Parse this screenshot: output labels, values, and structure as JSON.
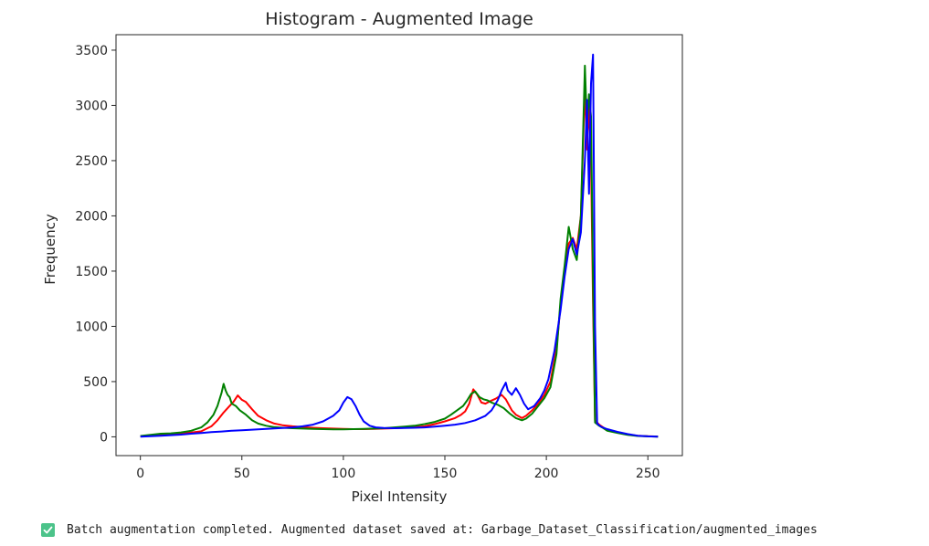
{
  "chart_data": {
    "type": "line",
    "title": "Histogram - Augmented Image",
    "xlabel": "Pixel Intensity",
    "ylabel": "Frequency",
    "xlim": [
      -12,
      267
    ],
    "ylim": [
      -170,
      3640
    ],
    "xticks": [
      0,
      50,
      100,
      150,
      200,
      250
    ],
    "yticks": [
      0,
      500,
      1000,
      1500,
      2000,
      2500,
      3000,
      3500
    ],
    "grid": false,
    "series": [
      {
        "color": "#ff0000",
        "points": [
          [
            0,
            5
          ],
          [
            5,
            12
          ],
          [
            10,
            22
          ],
          [
            15,
            28
          ],
          [
            20,
            32
          ],
          [
            25,
            38
          ],
          [
            30,
            50
          ],
          [
            35,
            95
          ],
          [
            38,
            150
          ],
          [
            41,
            220
          ],
          [
            44,
            280
          ],
          [
            46,
            320
          ],
          [
            48,
            375
          ],
          [
            50,
            335
          ],
          [
            52,
            315
          ],
          [
            55,
            250
          ],
          [
            58,
            190
          ],
          [
            62,
            150
          ],
          [
            66,
            120
          ],
          [
            70,
            105
          ],
          [
            75,
            95
          ],
          [
            80,
            88
          ],
          [
            85,
            82
          ],
          [
            90,
            78
          ],
          [
            95,
            75
          ],
          [
            100,
            72
          ],
          [
            105,
            70
          ],
          [
            110,
            70
          ],
          [
            115,
            72
          ],
          [
            120,
            75
          ],
          [
            125,
            78
          ],
          [
            130,
            82
          ],
          [
            135,
            88
          ],
          [
            140,
            95
          ],
          [
            145,
            115
          ],
          [
            150,
            140
          ],
          [
            155,
            170
          ],
          [
            158,
            200
          ],
          [
            160,
            230
          ],
          [
            162,
            300
          ],
          [
            164,
            430
          ],
          [
            166,
            380
          ],
          [
            168,
            310
          ],
          [
            170,
            300
          ],
          [
            172,
            320
          ],
          [
            175,
            345
          ],
          [
            178,
            380
          ],
          [
            180,
            340
          ],
          [
            183,
            240
          ],
          [
            185,
            200
          ],
          [
            188,
            170
          ],
          [
            190,
            190
          ],
          [
            193,
            240
          ],
          [
            196,
            300
          ],
          [
            199,
            380
          ],
          [
            202,
            500
          ],
          [
            205,
            800
          ],
          [
            207,
            1200
          ],
          [
            209,
            1500
          ],
          [
            211,
            1750
          ],
          [
            213,
            1800
          ],
          [
            215,
            1700
          ],
          [
            217,
            2000
          ],
          [
            219,
            3180
          ],
          [
            220,
            2600
          ],
          [
            221,
            3000
          ],
          [
            222,
            2500
          ],
          [
            223,
            1200
          ],
          [
            224,
            150
          ],
          [
            226,
            110
          ],
          [
            228,
            85
          ],
          [
            230,
            60
          ],
          [
            235,
            40
          ],
          [
            240,
            20
          ],
          [
            245,
            10
          ],
          [
            250,
            5
          ],
          [
            255,
            3
          ]
        ]
      },
      {
        "color": "#008000",
        "points": [
          [
            0,
            8
          ],
          [
            5,
            18
          ],
          [
            10,
            28
          ],
          [
            15,
            32
          ],
          [
            20,
            40
          ],
          [
            25,
            55
          ],
          [
            30,
            85
          ],
          [
            33,
            130
          ],
          [
            36,
            200
          ],
          [
            38,
            280
          ],
          [
            40,
            400
          ],
          [
            41,
            480
          ],
          [
            42,
            420
          ],
          [
            43,
            380
          ],
          [
            44,
            360
          ],
          [
            45,
            300
          ],
          [
            47,
            280
          ],
          [
            49,
            240
          ],
          [
            52,
            200
          ],
          [
            55,
            150
          ],
          [
            58,
            120
          ],
          [
            62,
            100
          ],
          [
            66,
            88
          ],
          [
            70,
            82
          ],
          [
            75,
            78
          ],
          [
            80,
            75
          ],
          [
            85,
            72
          ],
          [
            90,
            70
          ],
          [
            95,
            68
          ],
          [
            100,
            68
          ],
          [
            105,
            70
          ],
          [
            110,
            72
          ],
          [
            115,
            75
          ],
          [
            120,
            78
          ],
          [
            125,
            85
          ],
          [
            130,
            92
          ],
          [
            135,
            100
          ],
          [
            140,
            115
          ],
          [
            145,
            135
          ],
          [
            150,
            165
          ],
          [
            153,
            200
          ],
          [
            156,
            240
          ],
          [
            159,
            280
          ],
          [
            161,
            330
          ],
          [
            163,
            390
          ],
          [
            165,
            410
          ],
          [
            167,
            360
          ],
          [
            169,
            340
          ],
          [
            171,
            330
          ],
          [
            173,
            310
          ],
          [
            176,
            290
          ],
          [
            179,
            260
          ],
          [
            182,
            210
          ],
          [
            185,
            170
          ],
          [
            188,
            150
          ],
          [
            190,
            165
          ],
          [
            193,
            210
          ],
          [
            196,
            280
          ],
          [
            199,
            350
          ],
          [
            202,
            450
          ],
          [
            205,
            750
          ],
          [
            207,
            1250
          ],
          [
            209,
            1550
          ],
          [
            211,
            1900
          ],
          [
            213,
            1700
          ],
          [
            215,
            1600
          ],
          [
            217,
            2000
          ],
          [
            219,
            3360
          ],
          [
            220,
            2800
          ],
          [
            221,
            3100
          ],
          [
            222,
            2900
          ],
          [
            223,
            1400
          ],
          [
            224,
            130
          ],
          [
            226,
            100
          ],
          [
            228,
            80
          ],
          [
            230,
            55
          ],
          [
            235,
            35
          ],
          [
            240,
            18
          ],
          [
            245,
            8
          ],
          [
            250,
            4
          ],
          [
            255,
            2
          ]
        ]
      },
      {
        "color": "#0000ff",
        "points": [
          [
            0,
            2
          ],
          [
            5,
            5
          ],
          [
            10,
            10
          ],
          [
            15,
            15
          ],
          [
            20,
            20
          ],
          [
            25,
            28
          ],
          [
            30,
            35
          ],
          [
            35,
            42
          ],
          [
            40,
            48
          ],
          [
            45,
            55
          ],
          [
            50,
            60
          ],
          [
            55,
            65
          ],
          [
            60,
            70
          ],
          [
            65,
            75
          ],
          [
            70,
            80
          ],
          [
            75,
            85
          ],
          [
            80,
            95
          ],
          [
            85,
            110
          ],
          [
            90,
            140
          ],
          [
            95,
            190
          ],
          [
            98,
            240
          ],
          [
            100,
            310
          ],
          [
            102,
            360
          ],
          [
            104,
            340
          ],
          [
            106,
            280
          ],
          [
            108,
            200
          ],
          [
            110,
            140
          ],
          [
            113,
            100
          ],
          [
            116,
            85
          ],
          [
            120,
            80
          ],
          [
            125,
            78
          ],
          [
            130,
            80
          ],
          [
            135,
            82
          ],
          [
            140,
            85
          ],
          [
            145,
            92
          ],
          [
            150,
            100
          ],
          [
            155,
            110
          ],
          [
            160,
            125
          ],
          [
            165,
            150
          ],
          [
            170,
            190
          ],
          [
            173,
            240
          ],
          [
            176,
            330
          ],
          [
            178,
            420
          ],
          [
            180,
            490
          ],
          [
            181,
            420
          ],
          [
            183,
            380
          ],
          [
            185,
            440
          ],
          [
            187,
            380
          ],
          [
            189,
            300
          ],
          [
            191,
            250
          ],
          [
            194,
            280
          ],
          [
            197,
            350
          ],
          [
            199,
            420
          ],
          [
            201,
            520
          ],
          [
            204,
            780
          ],
          [
            207,
            1150
          ],
          [
            209,
            1450
          ],
          [
            211,
            1700
          ],
          [
            213,
            1790
          ],
          [
            215,
            1650
          ],
          [
            217,
            1850
          ],
          [
            219,
            2500
          ],
          [
            220,
            3050
          ],
          [
            221,
            2200
          ],
          [
            222,
            3200
          ],
          [
            223,
            3460
          ],
          [
            224,
            1000
          ],
          [
            225,
            120
          ],
          [
            227,
            90
          ],
          [
            230,
            70
          ],
          [
            235,
            45
          ],
          [
            240,
            25
          ],
          [
            245,
            10
          ],
          [
            250,
            4
          ],
          [
            255,
            2
          ]
        ]
      }
    ]
  },
  "status": {
    "icon": "check-mark-icon",
    "text": "Batch augmentation completed. Augmented dataset saved at: Garbage_Dataset_Classification/augmented_images"
  }
}
